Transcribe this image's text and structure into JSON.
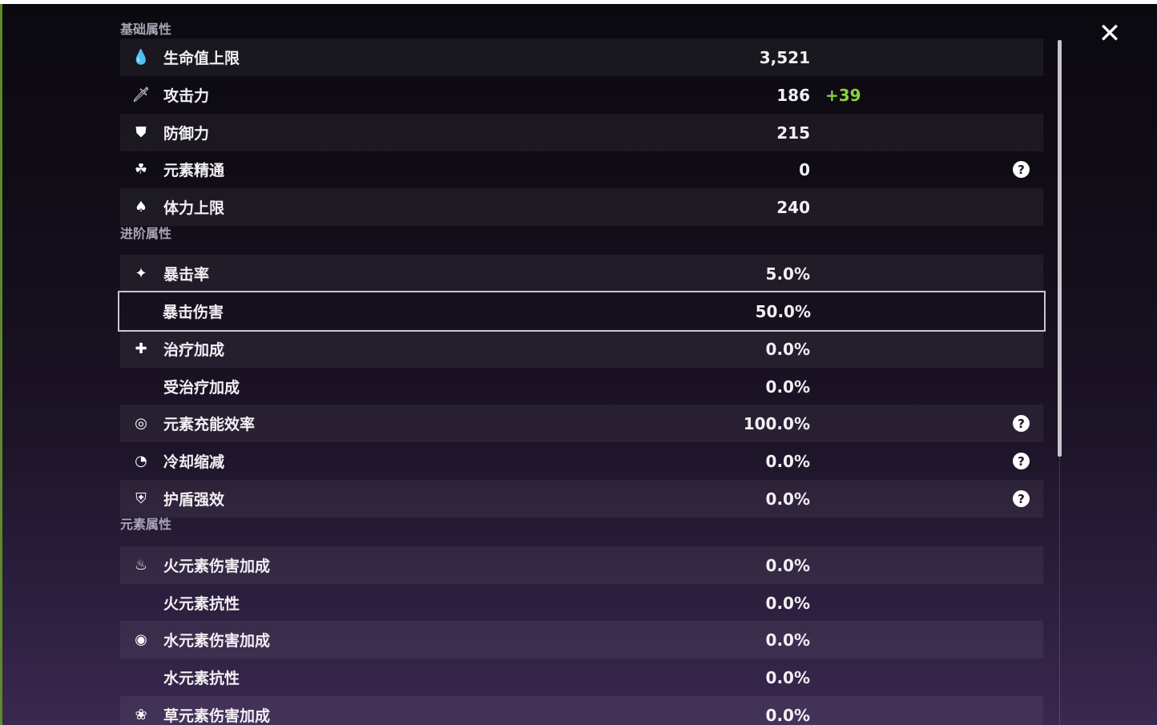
{
  "close_icon": "close-icon",
  "sections": [
    {
      "title": "基础属性",
      "rows": [
        {
          "icon": "hp-drop-icon",
          "glyph": "💧",
          "label": "生命值上限",
          "value": "3,521"
        },
        {
          "icon": "sword-icon",
          "glyph": "🗡",
          "label": "攻击力",
          "value": "186",
          "bonus": "+39"
        },
        {
          "icon": "shield-icon",
          "glyph": "⛊",
          "label": "防御力",
          "value": "215"
        },
        {
          "icon": "elemental-mastery-icon",
          "glyph": "☘",
          "label": "元素精通",
          "value": "0",
          "help": "?"
        },
        {
          "icon": "stamina-icon",
          "glyph": "♠",
          "label": "体力上限",
          "value": "240"
        }
      ]
    },
    {
      "title": "进阶属性",
      "rows": [
        {
          "icon": "crit-rate-icon",
          "glyph": "✦",
          "label": "暴击率",
          "value": "5.0%"
        },
        {
          "icon": "",
          "glyph": "",
          "label": "暴击伤害",
          "value": "50.0%",
          "selected": true
        },
        {
          "icon": "healing-cross-icon",
          "glyph": "✚",
          "label": "治疗加成",
          "value": "0.0%"
        },
        {
          "icon": "",
          "glyph": "",
          "label": "受治疗加成",
          "value": "0.0%"
        },
        {
          "icon": "energy-recharge-icon",
          "glyph": "◎",
          "label": "元素充能效率",
          "value": "100.0%",
          "help": "?"
        },
        {
          "icon": "cooldown-icon",
          "glyph": "◔",
          "label": "冷却缩减",
          "value": "0.0%",
          "help": "?"
        },
        {
          "icon": "shield-strength-icon",
          "glyph": "⛨",
          "label": "护盾强效",
          "value": "0.0%",
          "help": "?"
        }
      ]
    },
    {
      "title": "元素属性",
      "rows": [
        {
          "icon": "pyro-icon",
          "glyph": "♨",
          "label": "火元素伤害加成",
          "value": "0.0%"
        },
        {
          "icon": "",
          "glyph": "",
          "label": "火元素抗性",
          "value": "0.0%"
        },
        {
          "icon": "hydro-icon",
          "glyph": "◉",
          "label": "水元素伤害加成",
          "value": "0.0%"
        },
        {
          "icon": "",
          "glyph": "",
          "label": "水元素抗性",
          "value": "0.0%"
        },
        {
          "icon": "dendro-icon",
          "glyph": "❀",
          "label": "草元素伤害加成",
          "value": "0.0%"
        }
      ]
    }
  ],
  "colors": {
    "bonus": "#8ad23c",
    "text": "#f2f0f4",
    "section": "#a9a3b3"
  }
}
